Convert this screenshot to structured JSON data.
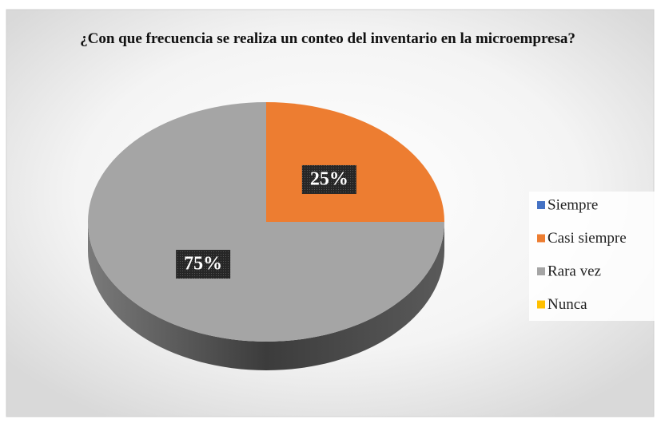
{
  "chart_data": {
    "type": "pie",
    "title": "¿Con que frecuencia se realiza un conteo del inventario en la microempresa?",
    "categories": [
      "Siempre",
      "Casi siempre",
      "Rara vez",
      "Nunca"
    ],
    "values": [
      0,
      25,
      75,
      0
    ],
    "value_labels": [
      null,
      "25%",
      "75%",
      null
    ],
    "colors": [
      "#4472c4",
      "#ed7d31",
      "#a5a5a5",
      "#ffc000"
    ],
    "legend": "right"
  }
}
